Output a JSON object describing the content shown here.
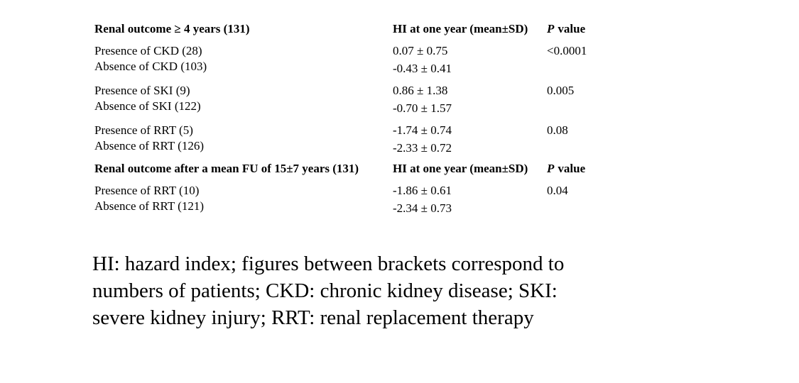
{
  "table": {
    "sections": [
      {
        "title": "Renal outcome ≥ 4 years (131)",
        "hi_header": "HI at one year (mean±SD)",
        "p_header_italic": "P",
        "p_header_rest": "value",
        "groups": [
          {
            "p": "<0.0001",
            "rows": [
              {
                "label": "Presence of CKD (28)",
                "value": "0.07 ± 0.75"
              },
              {
                "label": "Absence of CKD (103)",
                "value": "-0.43 ± 0.41"
              }
            ]
          },
          {
            "p": "0.005",
            "rows": [
              {
                "label": "Presence of SKI (9)",
                "value": "0.86 ± 1.38"
              },
              {
                "label": "Absence of SKI (122)",
                "value": "-0.70 ± 1.57"
              }
            ]
          },
          {
            "p": "0.08",
            "rows": [
              {
                "label": "Presence of RRT (5)",
                "value": "-1.74 ± 0.74"
              },
              {
                "label": "Absence of RRT (126)",
                "value": "-2.33 ± 0.72"
              }
            ]
          }
        ]
      },
      {
        "title": "Renal outcome after a mean FU of 15±7 years (131)",
        "hi_header": "HI at one year (mean±SD)",
        "p_header_italic": "P",
        "p_header_rest": "value",
        "groups": [
          {
            "p": "0.04",
            "rows": [
              {
                "label": "Presence of RRT (10)",
                "value": "-1.86 ± 0.61"
              },
              {
                "label": "Absence of RRT (121)",
                "value": "-2.34 ± 0.73"
              }
            ]
          }
        ]
      }
    ]
  },
  "footnote": {
    "lines": [
      "HI: hazard index; figures between brackets correspond to",
      "numbers of patients; CKD: chronic kidney disease; SKI:",
      "severe kidney injury; RRT: renal replacement therapy"
    ]
  }
}
